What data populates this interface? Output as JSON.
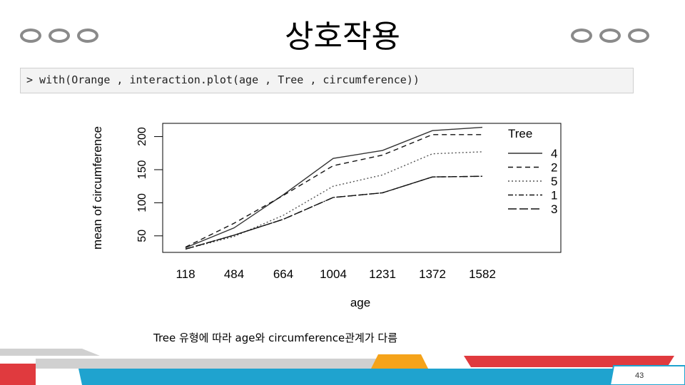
{
  "slide": {
    "title": "상호작용",
    "code": "> with(Orange , interaction.plot(age , Tree , circumference))",
    "caption": "Tree 유형에 따라 age와 circumference관계가 다름",
    "page_number": "43"
  },
  "colors": {
    "deco_circle": "#8a8a8a",
    "footer_red": "#e03a3e",
    "footer_blue": "#1fa3cf",
    "footer_orange": "#f5a31a",
    "footer_gray": "#d0d0d0"
  },
  "chart_data": {
    "type": "line",
    "xlabel": "age",
    "ylabel": "mean of circumference",
    "categories": [
      "118",
      "484",
      "664",
      "1004",
      "1231",
      "1372",
      "1582"
    ],
    "yticks": [
      50,
      100,
      150,
      200
    ],
    "ylim": [
      25,
      220
    ],
    "legend_title": "Tree",
    "legend_position": "right",
    "grid": false,
    "series": [
      {
        "name": "4",
        "style": "solid",
        "values": [
          32,
          62,
          112,
          167,
          179,
          209,
          214
        ]
      },
      {
        "name": "2",
        "style": "dashed",
        "values": [
          33,
          69,
          111,
          156,
          172,
          203,
          203
        ]
      },
      {
        "name": "5",
        "style": "dotted",
        "values": [
          30,
          49,
          81,
          125,
          142,
          174,
          177
        ]
      },
      {
        "name": "1",
        "style": "dashdot",
        "values": [
          30,
          51,
          75,
          108,
          115,
          139,
          140
        ]
      },
      {
        "name": "3",
        "style": "longdash",
        "values": [
          30,
          51,
          75,
          108,
          115,
          139,
          140
        ]
      }
    ]
  }
}
